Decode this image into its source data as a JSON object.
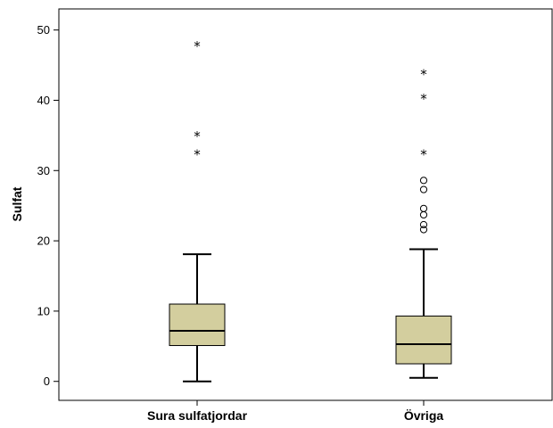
{
  "chart_data": {
    "type": "boxplot",
    "ylabel": "Sulfat",
    "xlabel": "",
    "ylim": [
      -2.7,
      53
    ],
    "yticks": [
      0,
      10,
      20,
      30,
      40,
      50
    ],
    "grid": false,
    "categories": [
      "Sura sulfatjordar",
      "Övriga"
    ],
    "boxes": [
      {
        "category": "Sura sulfatjordar",
        "whisker_low": 0,
        "q1": 5.1,
        "median": 7.2,
        "q3": 11.0,
        "whisker_high": 18.1,
        "outliers": [],
        "extremes": [
          32.4,
          35.0,
          47.8
        ]
      },
      {
        "category": "Övriga",
        "whisker_low": 0.5,
        "q1": 2.5,
        "median": 5.3,
        "q3": 9.3,
        "whisker_high": 18.8,
        "outliers": [
          21.6,
          22.3,
          23.7,
          24.6,
          27.3,
          28.6
        ],
        "extremes": [
          32.4,
          40.3,
          43.8
        ]
      }
    ],
    "colors": {
      "box_fill": "#d3ce9e",
      "stroke": "#000000"
    }
  }
}
